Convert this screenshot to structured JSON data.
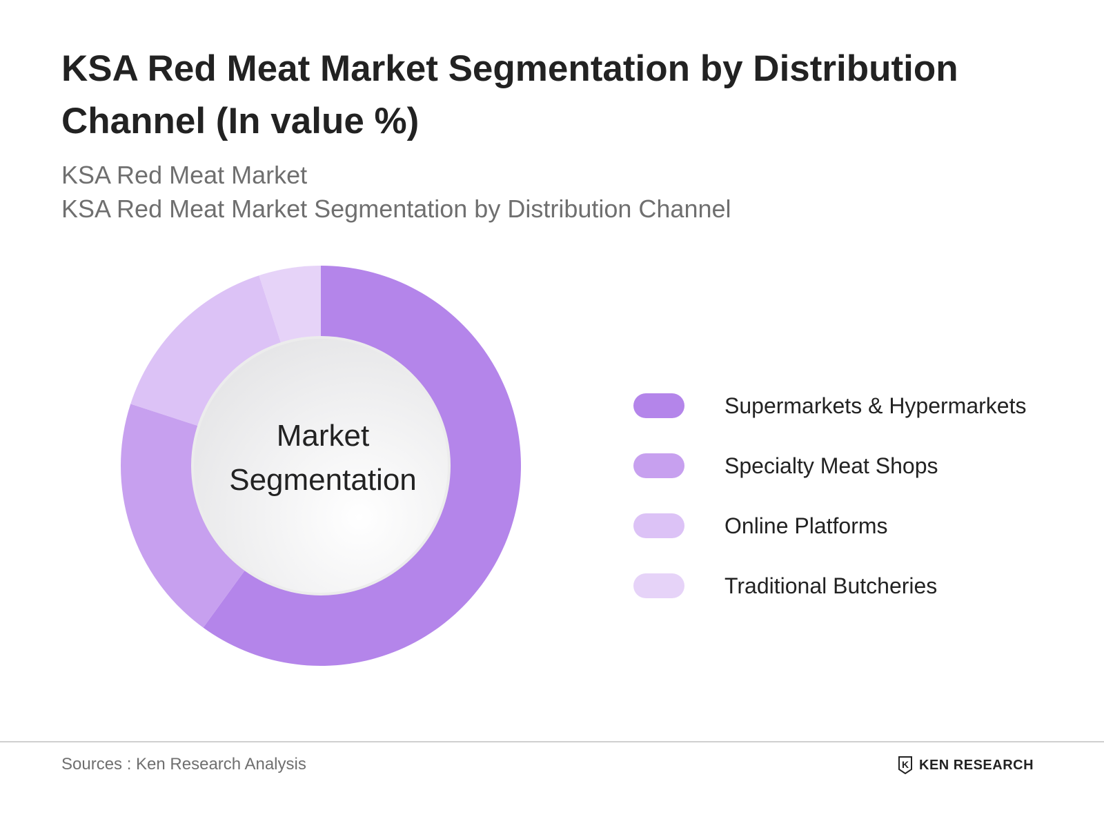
{
  "header": {
    "title": "KSA Red Meat Market Segmentation by  Distribution Channel (In value %)",
    "subtitle_1": "KSA Red Meat Market",
    "subtitle_2": "KSA Red Meat Market Segmentation by  Distribution Channel"
  },
  "chart_data": {
    "type": "pie",
    "variant": "donut",
    "center_label": "Market Segmentation",
    "categories": [
      "Supermarkets & Hypermarkets",
      "Specialty Meat Shops",
      "Online Platforms",
      "Traditional Butcheries"
    ],
    "values": [
      60,
      20,
      15,
      5
    ],
    "colors": [
      "#b485ea",
      "#c7a0ef",
      "#dcc2f6",
      "#e6d3f8"
    ],
    "legend": "right"
  },
  "footer": {
    "sources": "Sources : Ken Research Analysis",
    "brand": "KEN RESEARCH",
    "logo_letter": "K"
  }
}
